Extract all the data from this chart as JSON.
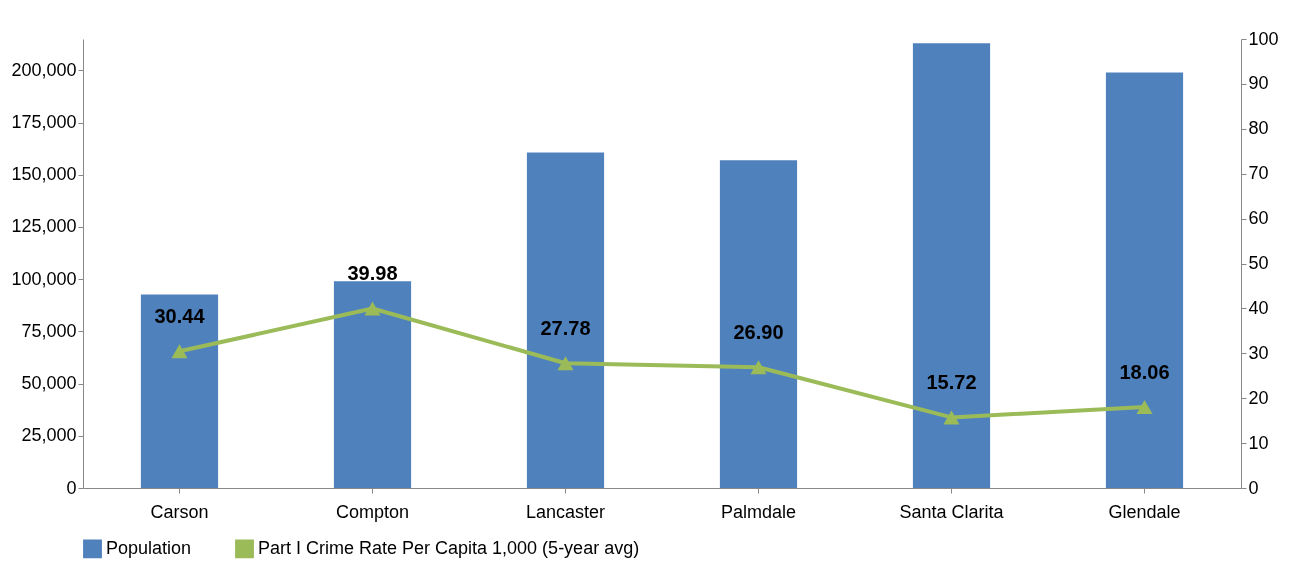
{
  "chart_data": {
    "type": "bar",
    "categories": [
      "Carson",
      "Compton",
      "Lancaster",
      "Palmdale",
      "Santa Clarita",
      "Glendale"
    ],
    "series": [
      {
        "name": "Population",
        "color": "#4f81bd",
        "values": [
          92700,
          99000,
          160600,
          157000,
          213000,
          199000
        ]
      },
      {
        "name": "Part I Crime Rate Per Capita 1,000 (5-year avg)",
        "type": "line",
        "axis": "y2",
        "color": "#9bbb59",
        "values": [
          30.44,
          39.98,
          27.78,
          26.9,
          15.72,
          18.06
        ],
        "value_labels": [
          "30.44",
          "39.98",
          "27.78",
          "26.90",
          "15.72",
          "18.06"
        ]
      }
    ],
    "ylim": [
      0,
      215000
    ],
    "yticks": [
      {
        "value": 0,
        "label": "0"
      },
      {
        "value": 25000,
        "label": "25,000"
      },
      {
        "value": 50000,
        "label": "50,000"
      },
      {
        "value": 75000,
        "label": "75,000"
      },
      {
        "value": 100000,
        "label": "100,000"
      },
      {
        "value": 125000,
        "label": "125,000"
      },
      {
        "value": 150000,
        "label": "150,000"
      },
      {
        "value": 175000,
        "label": "175,000"
      },
      {
        "value": 200000,
        "label": "200,000"
      }
    ],
    "y2lim": [
      0,
      100
    ],
    "y2ticks": [
      0,
      10,
      20,
      30,
      40,
      50,
      60,
      70,
      80,
      90,
      100
    ],
    "legend": "bottom",
    "grid": false,
    "marker": "triangle",
    "line_style": "solid"
  }
}
